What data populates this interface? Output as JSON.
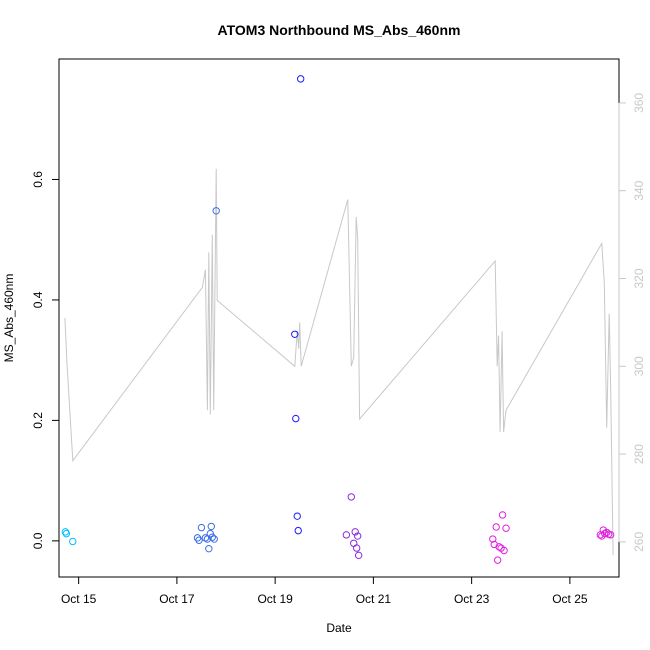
{
  "chart_data": {
    "type": "scatter",
    "title": "ATOM3 Northbound MS_Abs_460nm",
    "xlabel": "Date",
    "ylabel": "MS_Abs_460nm",
    "x_ticks": [
      {
        "day": 15,
        "label": "Oct 15"
      },
      {
        "day": 17,
        "label": "Oct 17"
      },
      {
        "day": 19,
        "label": "Oct 19"
      },
      {
        "day": 21,
        "label": "Oct 21"
      },
      {
        "day": 23,
        "label": "Oct 23"
      },
      {
        "day": 25,
        "label": "Oct 25"
      }
    ],
    "xlim": [
      14.6,
      26.0
    ],
    "ylim": [
      -0.06,
      0.8
    ],
    "y_ticks": [
      0.0,
      0.2,
      0.4,
      0.6
    ],
    "y_tick_labels": [
      "0.0",
      "0.2",
      "0.4",
      "0.6"
    ],
    "y2lim": [
      252,
      370
    ],
    "y2_ticks": [
      260,
      280,
      300,
      320,
      340,
      360
    ],
    "y2_tick_labels": [
      "260",
      "280",
      "300",
      "320",
      "340",
      "360"
    ],
    "grid": false,
    "series": [
      {
        "kind": "points",
        "axis": "left",
        "colors": [
          "#00bfff",
          "#3c6ee6",
          "#1a1aff",
          "#8a2be2",
          "#e020e0"
        ],
        "values": [
          {
            "x": 14.73,
            "y": 0.015,
            "color": "#00bfff"
          },
          {
            "x": 14.75,
            "y": 0.012,
            "color": "#00bfff"
          },
          {
            "x": 14.88,
            "y": -0.001,
            "color": "#00bfff"
          },
          {
            "x": 17.42,
            "y": 0.005,
            "color": "#3c6ee6"
          },
          {
            "x": 17.45,
            "y": 0.001,
            "color": "#3c6ee6"
          },
          {
            "x": 17.5,
            "y": 0.022,
            "color": "#3c6ee6"
          },
          {
            "x": 17.58,
            "y": 0.005,
            "color": "#3c6ee6"
          },
          {
            "x": 17.62,
            "y": 0.003,
            "color": "#3c6ee6"
          },
          {
            "x": 17.65,
            "y": -0.013,
            "color": "#3c6ee6"
          },
          {
            "x": 17.68,
            "y": 0.012,
            "color": "#3c6ee6"
          },
          {
            "x": 17.7,
            "y": 0.024,
            "color": "#3c6ee6"
          },
          {
            "x": 17.72,
            "y": 0.006,
            "color": "#3c6ee6"
          },
          {
            "x": 17.76,
            "y": 0.003,
            "color": "#3c6ee6"
          },
          {
            "x": 17.8,
            "y": 0.548,
            "color": "#3c6ee6"
          },
          {
            "x": 19.4,
            "y": 0.343,
            "color": "#1a1aff"
          },
          {
            "x": 19.42,
            "y": 0.203,
            "color": "#1a1aff"
          },
          {
            "x": 19.45,
            "y": 0.041,
            "color": "#1a1aff"
          },
          {
            "x": 19.47,
            "y": 0.017,
            "color": "#1a1aff"
          },
          {
            "x": 19.52,
            "y": 0.767,
            "color": "#1a1aff"
          },
          {
            "x": 20.45,
            "y": 0.01,
            "color": "#8a2be2"
          },
          {
            "x": 20.55,
            "y": 0.073,
            "color": "#8a2be2"
          },
          {
            "x": 20.6,
            "y": -0.004,
            "color": "#8a2be2"
          },
          {
            "x": 20.63,
            "y": 0.015,
            "color": "#8a2be2"
          },
          {
            "x": 20.66,
            "y": -0.012,
            "color": "#8a2be2"
          },
          {
            "x": 20.68,
            "y": 0.008,
            "color": "#8a2be2"
          },
          {
            "x": 20.7,
            "y": -0.024,
            "color": "#8a2be2"
          },
          {
            "x": 23.43,
            "y": 0.003,
            "color": "#e020e0"
          },
          {
            "x": 23.46,
            "y": -0.006,
            "color": "#e020e0"
          },
          {
            "x": 23.5,
            "y": 0.023,
            "color": "#e020e0"
          },
          {
            "x": 23.53,
            "y": -0.032,
            "color": "#e020e0"
          },
          {
            "x": 23.56,
            "y": -0.01,
            "color": "#e020e0"
          },
          {
            "x": 23.6,
            "y": -0.012,
            "color": "#e020e0"
          },
          {
            "x": 23.63,
            "y": 0.043,
            "color": "#e020e0"
          },
          {
            "x": 23.66,
            "y": -0.016,
            "color": "#e020e0"
          },
          {
            "x": 23.7,
            "y": 0.021,
            "color": "#e020e0"
          },
          {
            "x": 25.62,
            "y": 0.01,
            "color": "#e020e0"
          },
          {
            "x": 25.65,
            "y": 0.008,
            "color": "#e020e0"
          },
          {
            "x": 25.68,
            "y": 0.018,
            "color": "#e020e0"
          },
          {
            "x": 25.71,
            "y": 0.012,
            "color": "#e020e0"
          },
          {
            "x": 25.75,
            "y": 0.014,
            "color": "#e020e0"
          },
          {
            "x": 25.79,
            "y": 0.011,
            "color": "#e020e0"
          },
          {
            "x": 25.83,
            "y": 0.01,
            "color": "#e020e0"
          }
        ]
      },
      {
        "kind": "line",
        "axis": "right",
        "color": "#c8c8c8",
        "values": [
          {
            "x": 14.72,
            "y": 311
          },
          {
            "x": 14.76,
            "y": 301
          },
          {
            "x": 14.88,
            "y": 278.5
          },
          {
            "x": 17.52,
            "y": 318
          },
          {
            "x": 17.58,
            "y": 322
          },
          {
            "x": 17.62,
            "y": 290
          },
          {
            "x": 17.65,
            "y": 326
          },
          {
            "x": 17.68,
            "y": 289
          },
          {
            "x": 17.72,
            "y": 330
          },
          {
            "x": 17.75,
            "y": 290
          },
          {
            "x": 17.8,
            "y": 345
          },
          {
            "x": 17.82,
            "y": 315
          },
          {
            "x": 19.4,
            "y": 300
          },
          {
            "x": 19.45,
            "y": 308
          },
          {
            "x": 19.48,
            "y": 304
          },
          {
            "x": 19.5,
            "y": 310
          },
          {
            "x": 19.53,
            "y": 300
          },
          {
            "x": 20.48,
            "y": 338
          },
          {
            "x": 20.55,
            "y": 300
          },
          {
            "x": 20.6,
            "y": 302
          },
          {
            "x": 20.65,
            "y": 334
          },
          {
            "x": 20.68,
            "y": 329
          },
          {
            "x": 20.72,
            "y": 288
          },
          {
            "x": 23.48,
            "y": 324
          },
          {
            "x": 23.52,
            "y": 300
          },
          {
            "x": 23.55,
            "y": 307
          },
          {
            "x": 23.58,
            "y": 285
          },
          {
            "x": 23.62,
            "y": 308
          },
          {
            "x": 23.65,
            "y": 285
          },
          {
            "x": 23.7,
            "y": 290
          },
          {
            "x": 25.65,
            "y": 328
          },
          {
            "x": 25.7,
            "y": 319
          },
          {
            "x": 25.75,
            "y": 286
          },
          {
            "x": 25.8,
            "y": 312
          },
          {
            "x": 25.83,
            "y": 296
          },
          {
            "x": 25.88,
            "y": 257
          }
        ]
      }
    ]
  }
}
